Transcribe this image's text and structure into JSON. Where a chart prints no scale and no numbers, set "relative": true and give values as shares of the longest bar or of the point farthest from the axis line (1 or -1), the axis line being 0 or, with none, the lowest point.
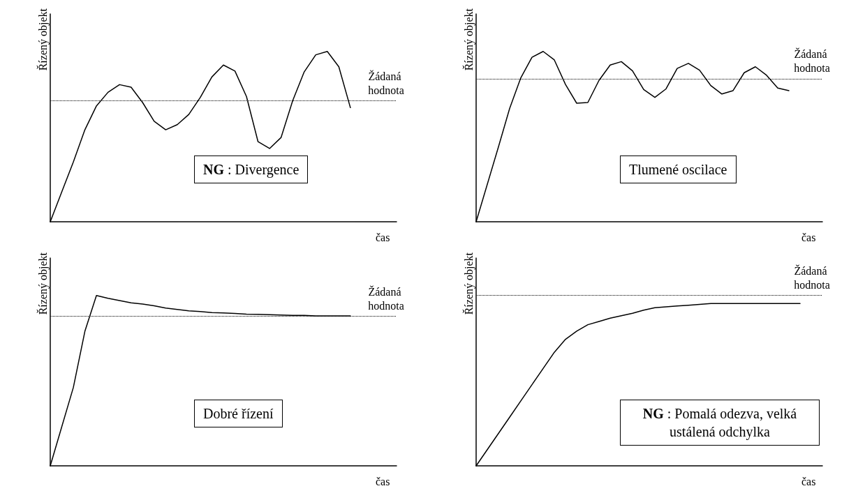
{
  "chart_data": [
    {
      "type": "line",
      "relative": true,
      "xlabel": "čas",
      "ylabel": "Řízený objekt",
      "color": "#000000",
      "marker": "none",
      "line_style": "solid",
      "grid": false,
      "categories": [
        null,
        null,
        null,
        null,
        null,
        null,
        null,
        null,
        null,
        null,
        null,
        null,
        null,
        null,
        null,
        null,
        null,
        null,
        null,
        null,
        null,
        null,
        null,
        null,
        null,
        null,
        null,
        null,
        null,
        null,
        null
      ],
      "values": [
        0,
        0.176,
        0.351,
        0.54,
        0.68,
        0.76,
        0.805,
        0.79,
        0.7,
        0.59,
        0.54,
        0.57,
        0.63,
        0.73,
        0.85,
        0.92,
        0.885,
        0.735,
        0.47,
        0.43,
        0.495,
        0.71,
        0.88,
        0.98,
        1,
        0.91,
        0.67,
        null,
        null,
        null,
        null
      ],
      "ref_lines": [
        {
          "axis": "y",
          "value": 0.71,
          "label": "Žádaná hodnota",
          "line_style": "dotted"
        }
      ],
      "annotations": [
        "NG : Divergence"
      ]
    },
    {
      "type": "line",
      "relative": true,
      "xlabel": "čas",
      "ylabel": "Řízený objekt",
      "color": "#000000",
      "marker": "none",
      "line_style": "solid",
      "grid": false,
      "categories": [
        null,
        null,
        null,
        null,
        null,
        null,
        null,
        null,
        null,
        null,
        null,
        null,
        null,
        null,
        null,
        null,
        null,
        null,
        null,
        null,
        null,
        null,
        null,
        null,
        null,
        null,
        null,
        null,
        null,
        null,
        null,
        null
      ],
      "values": [
        0,
        0.22,
        0.44,
        0.665,
        0.845,
        0.966,
        1,
        0.95,
        0.806,
        0.696,
        0.7,
        0.83,
        0.92,
        0.94,
        0.886,
        0.776,
        0.73,
        0.78,
        0.9,
        0.93,
        0.89,
        0.8,
        0.75,
        0.77,
        0.875,
        0.91,
        0.86,
        0.785,
        0.77,
        null,
        null,
        null
      ],
      "ref_lines": [
        {
          "axis": "y",
          "value": 0.84,
          "label": "Žádaná hodnota",
          "line_style": "dotted"
        }
      ],
      "annotations": [
        "Tlumené oscilace"
      ]
    },
    {
      "type": "line",
      "relative": true,
      "xlabel": "čas",
      "ylabel": "Řízený objekt",
      "color": "#000000",
      "marker": "none",
      "line_style": "solid",
      "grid": false,
      "categories": [
        null,
        null,
        null,
        null,
        null,
        null,
        null,
        null,
        null,
        null,
        null,
        null,
        null,
        null,
        null,
        null,
        null,
        null,
        null,
        null,
        null,
        null,
        null,
        null,
        null,
        null,
        null,
        null,
        null,
        null,
        null
      ],
      "values": [
        0,
        0.23,
        0.46,
        0.79,
        1,
        0.984,
        0.97,
        0.957,
        0.95,
        0.94,
        0.926,
        0.918,
        0.91,
        0.906,
        0.9,
        0.898,
        0.895,
        0.89,
        0.889,
        0.887,
        0.885,
        0.883,
        0.883,
        0.88,
        0.88,
        0.88,
        0.88,
        null,
        null,
        null,
        null
      ],
      "ref_lines": [
        {
          "axis": "y",
          "value": 0.88,
          "label": "Žádaná hodnota",
          "line_style": "dotted"
        }
      ],
      "annotations": [
        "Dobré řízení"
      ]
    },
    {
      "type": "line",
      "relative": true,
      "xlabel": "čas",
      "ylabel": "Řízený objekt",
      "color": "#000000",
      "marker": "none",
      "line_style": "solid",
      "grid": false,
      "categories": [
        null,
        null,
        null,
        null,
        null,
        null,
        null,
        null,
        null,
        null,
        null,
        null,
        null,
        null,
        null,
        null,
        null,
        null,
        null,
        null,
        null,
        null,
        null,
        null,
        null,
        null,
        null,
        null,
        null,
        null,
        null,
        null
      ],
      "values": [
        0,
        0.1,
        0.2,
        0.3,
        0.4,
        0.5,
        0.6,
        0.7,
        0.78,
        0.83,
        0.87,
        0.89,
        0.91,
        0.925,
        0.94,
        0.96,
        0.975,
        0.98,
        0.985,
        0.99,
        0.995,
        1,
        1,
        1,
        1,
        1,
        1,
        1,
        1,
        1,
        null,
        null
      ],
      "ref_lines": [
        {
          "axis": "y",
          "value": 1.05,
          "label": "Žádaná hodnota",
          "line_style": "dotted"
        }
      ],
      "annotations": [
        "NG : Pomalá odezva, velká ustálená odchylka"
      ]
    }
  ]
}
